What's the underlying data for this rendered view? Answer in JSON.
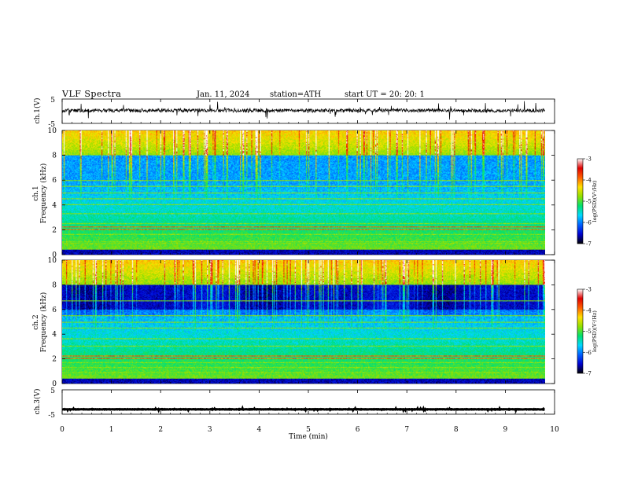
{
  "header": {
    "title": "VLF  Spectra",
    "date": "Jan.  11,  2024",
    "station": "station=ATH",
    "start": "start  UT  =   20: 20: 1"
  },
  "chart_data": [
    {
      "type": "line",
      "id": "ch1",
      "ylabel": "ch.1(V)",
      "ylim": [
        -5,
        5
      ],
      "yticks": [
        "5",
        "-5"
      ],
      "x_range_min": [
        0,
        9.8
      ],
      "trace_level_V": 0.3,
      "trace_amplitude_V": 3,
      "color": "#000000"
    },
    {
      "type": "heatmap",
      "id": "ch1-spec",
      "ylabel": "ch.1\nFrequency  (kHz)",
      "ylim_kHz": [
        0,
        10
      ],
      "yticks": [
        "0",
        "2",
        "4",
        "6",
        "8",
        "10"
      ],
      "x_range_min": [
        0,
        9.8
      ],
      "bands_kHz": [
        0.9,
        1.0,
        1.6,
        2.0,
        2.2,
        2.5,
        3.3,
        4.0,
        4.5,
        5.0,
        5.5,
        6.0
      ]
    },
    {
      "type": "heatmap",
      "id": "ch2-spec",
      "ylabel": "ch.2\nFrequency  (kHz)",
      "ylim_kHz": [
        0,
        10
      ],
      "yticks": [
        "0",
        "2",
        "4",
        "6",
        "8",
        "10"
      ],
      "x_range_min": [
        0,
        9.8
      ],
      "bands_kHz": [
        0.9,
        1.3,
        1.7,
        2.0,
        2.2,
        3.0,
        3.6,
        4.5,
        5.0,
        5.5,
        6.7
      ]
    },
    {
      "type": "line",
      "id": "ch3",
      "ylabel": "ch.3(V)",
      "ylim": [
        -5,
        5
      ],
      "yticks": [
        "5",
        "-5"
      ],
      "x_range_min": [
        0,
        9.8
      ],
      "trace_level_V": -3,
      "trace_amplitude_V": 0.3,
      "color": "#000000"
    }
  ],
  "x_axis": {
    "label": "Time  (min)",
    "range": [
      0,
      10
    ],
    "ticks": [
      "0",
      "1",
      "2",
      "3",
      "4",
      "5",
      "6",
      "7",
      "8",
      "9",
      "10"
    ]
  },
  "colorbar": {
    "label": "log(PSD)(V²/Hz)",
    "range": [
      -7,
      -3
    ],
    "ticks": [
      "-3",
      "-4",
      "-5",
      "-6",
      "-7"
    ],
    "colors": [
      "#000000",
      "#0000d0",
      "#0060ff",
      "#00d8ff",
      "#00e070",
      "#90e000",
      "#ffe000",
      "#ff6000",
      "#e00000",
      "#ffffff"
    ]
  }
}
